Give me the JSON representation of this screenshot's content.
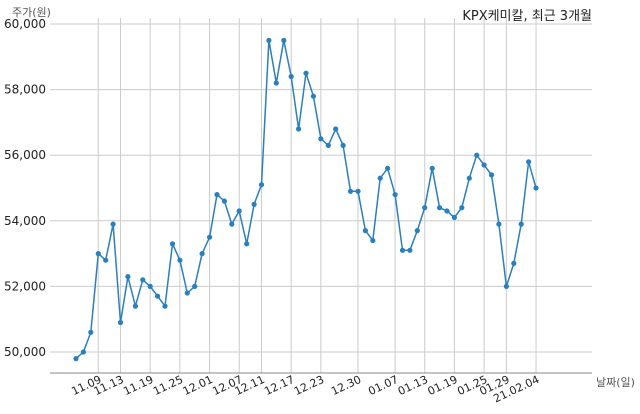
{
  "chart_data": {
    "type": "line",
    "title": "KPX케미칼, 최근 3개월",
    "ylabel": "주가(원)",
    "xlabel": "날짜(일)",
    "ylim": [
      49300,
      60000
    ],
    "yticks": [
      50000,
      52000,
      54000,
      56000,
      58000,
      60000
    ],
    "ytick_labels": [
      "50,000",
      "52,000",
      "54,000",
      "56,000",
      "58,000",
      "60,000"
    ],
    "x_tick_labels": [
      "11.09",
      "11.13",
      "11.19",
      "11.25",
      "12.01",
      "12.07",
      "12.11",
      "12.17",
      "12.23",
      "12.30",
      "01.07",
      "01.13",
      "01.19",
      "01.25",
      "01.29",
      "21.02.04"
    ],
    "x_tick_index": [
      3,
      6,
      10,
      14,
      18,
      22,
      25,
      29,
      33,
      38,
      43,
      47,
      51,
      55,
      58,
      62
    ],
    "grid": true,
    "line_color": "#2a7fbd",
    "series": [
      {
        "values": [
          49800,
          50000,
          50600,
          53000,
          52800,
          53900,
          50900,
          52300,
          51400,
          52200,
          52000,
          51700,
          51400,
          53300,
          52800,
          51800,
          52000,
          53000,
          53500,
          54800,
          54600,
          53900,
          54300,
          53300,
          54500,
          55100,
          59500,
          58200,
          59500,
          58400,
          56800,
          58500,
          57800,
          56500,
          56300,
          56800,
          56300,
          54900,
          54900,
          53700,
          53400,
          55300,
          55600,
          54800,
          53100,
          53100,
          53700,
          54400,
          55600,
          54400,
          54300,
          54100,
          54400,
          55300,
          56000,
          55700,
          55400,
          53900,
          52000,
          52700,
          53900,
          55800,
          55000
        ]
      }
    ]
  }
}
